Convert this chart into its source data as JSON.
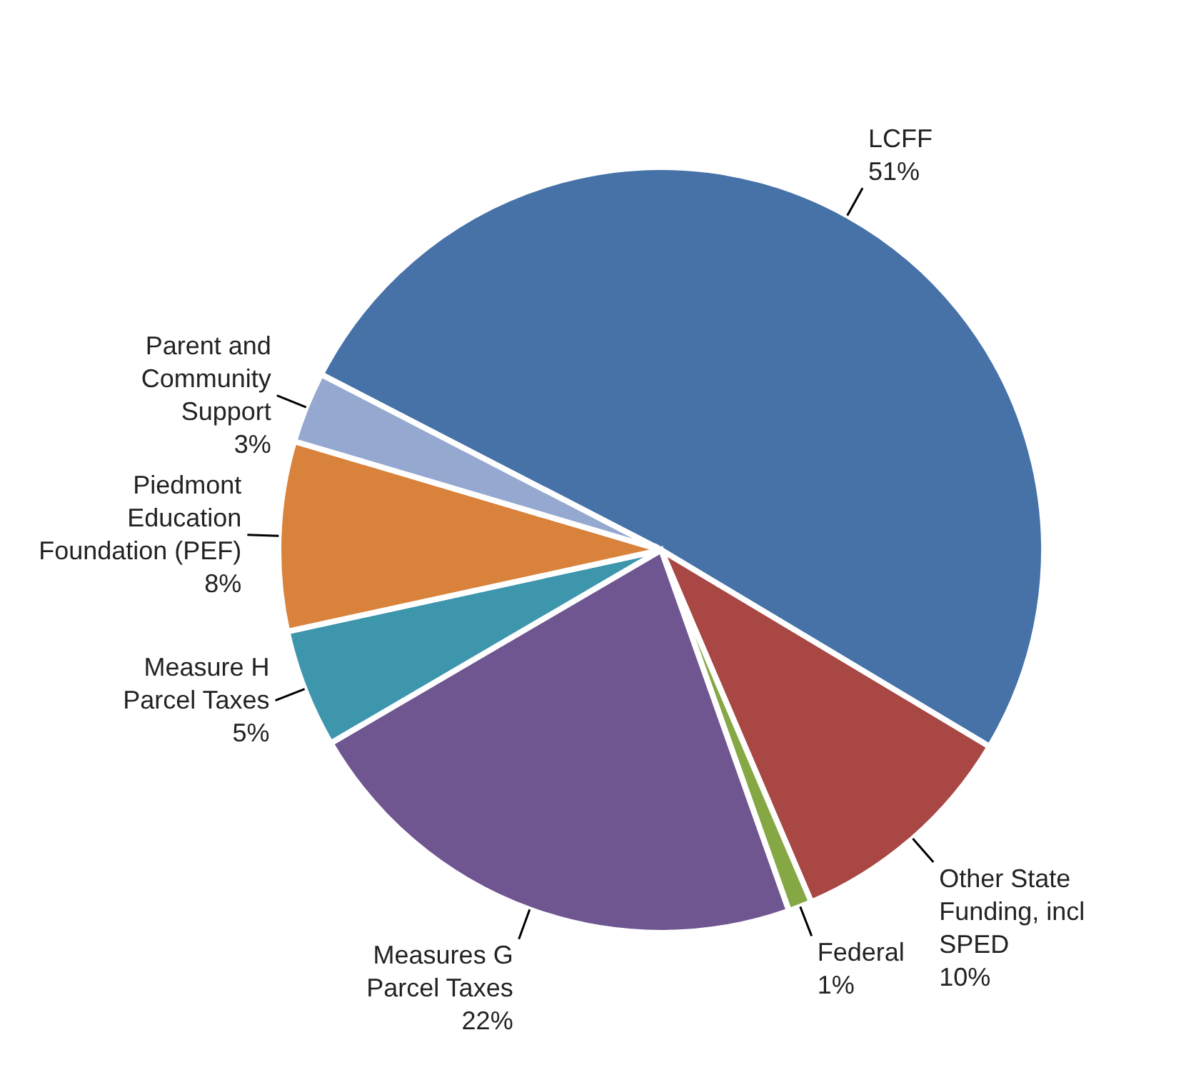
{
  "chart_data": {
    "type": "pie",
    "categories": [
      "LCFF",
      "Other State\nFunding, incl\nSPED",
      "Federal",
      "Measures G\nParcel Taxes",
      "Measure H\nParcel Taxes",
      "Piedmont\nEducation\nFoundation (PEF)",
      "Parent and\nCommunity\nSupport"
    ],
    "values": [
      51,
      10,
      1,
      22,
      5,
      8,
      3
    ],
    "value_labels": [
      "51%",
      "10%",
      "1%",
      "22%",
      "5%",
      "8%",
      "3%"
    ],
    "colors": [
      "#4672a8",
      "#a84743",
      "#86a844",
      "#6f5690",
      "#3e96ad",
      "#d9823b",
      "#94a8d0"
    ]
  }
}
